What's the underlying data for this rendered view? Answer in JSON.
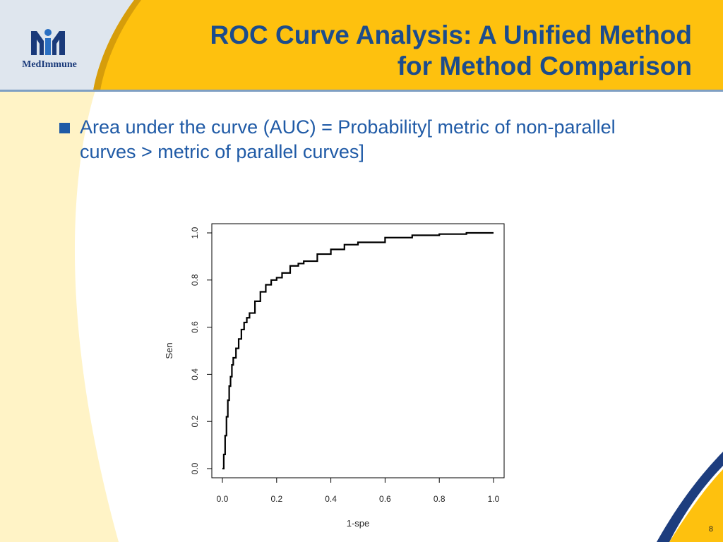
{
  "colors": {
    "header_yellow": "#fec10e",
    "header_blue_gray": "#dfe6ee",
    "left_cream": "#fff3c6",
    "swoosh_navy": "#1d3d7e",
    "swoosh_gold": "#d69d0b",
    "title_blue": "#1c4c8c",
    "bullet_blue": "#1f5aa6",
    "logo_blue": "#2a6fc2"
  },
  "logo": {
    "text": "MedImmune",
    "icon": "medimmune-logo-icon"
  },
  "title": {
    "line1": "ROC Curve Analysis: A Unified Method",
    "line2": "for Method Comparison"
  },
  "bullets": [
    {
      "icon": "square-bullet-icon",
      "text": "Area under the curve (AUC) = Probability[ metric of non-parallel curves > metric of parallel curves]"
    }
  ],
  "page_number": "8",
  "chart_data": {
    "type": "line",
    "title": "",
    "xlabel": "1-spe",
    "ylabel": "Sen",
    "xlim": [
      0,
      1
    ],
    "ylim": [
      0,
      1
    ],
    "xticks": [
      "0.0",
      "0.2",
      "0.4",
      "0.6",
      "0.8",
      "1.0"
    ],
    "yticks": [
      "0.0",
      "0.2",
      "0.4",
      "0.6",
      "0.8",
      "1.0"
    ],
    "grid": false,
    "series": [
      {
        "x": [
          0,
          0.005,
          0.01,
          0.015,
          0.02,
          0.025,
          0.03,
          0.035,
          0.04,
          0.05,
          0.06,
          0.07,
          0.08,
          0.09,
          0.1,
          0.12,
          0.14,
          0.16,
          0.18,
          0.2,
          0.22,
          0.25,
          0.28,
          0.3,
          0.35,
          0.4,
          0.45,
          0.5,
          0.6,
          0.7,
          0.8,
          0.9,
          1.0
        ],
        "y": [
          0,
          0.06,
          0.14,
          0.22,
          0.29,
          0.35,
          0.39,
          0.44,
          0.47,
          0.51,
          0.55,
          0.59,
          0.62,
          0.64,
          0.66,
          0.71,
          0.75,
          0.78,
          0.8,
          0.81,
          0.83,
          0.86,
          0.87,
          0.88,
          0.91,
          0.93,
          0.95,
          0.96,
          0.98,
          0.99,
          0.995,
          1.0,
          1.0
        ]
      }
    ]
  }
}
